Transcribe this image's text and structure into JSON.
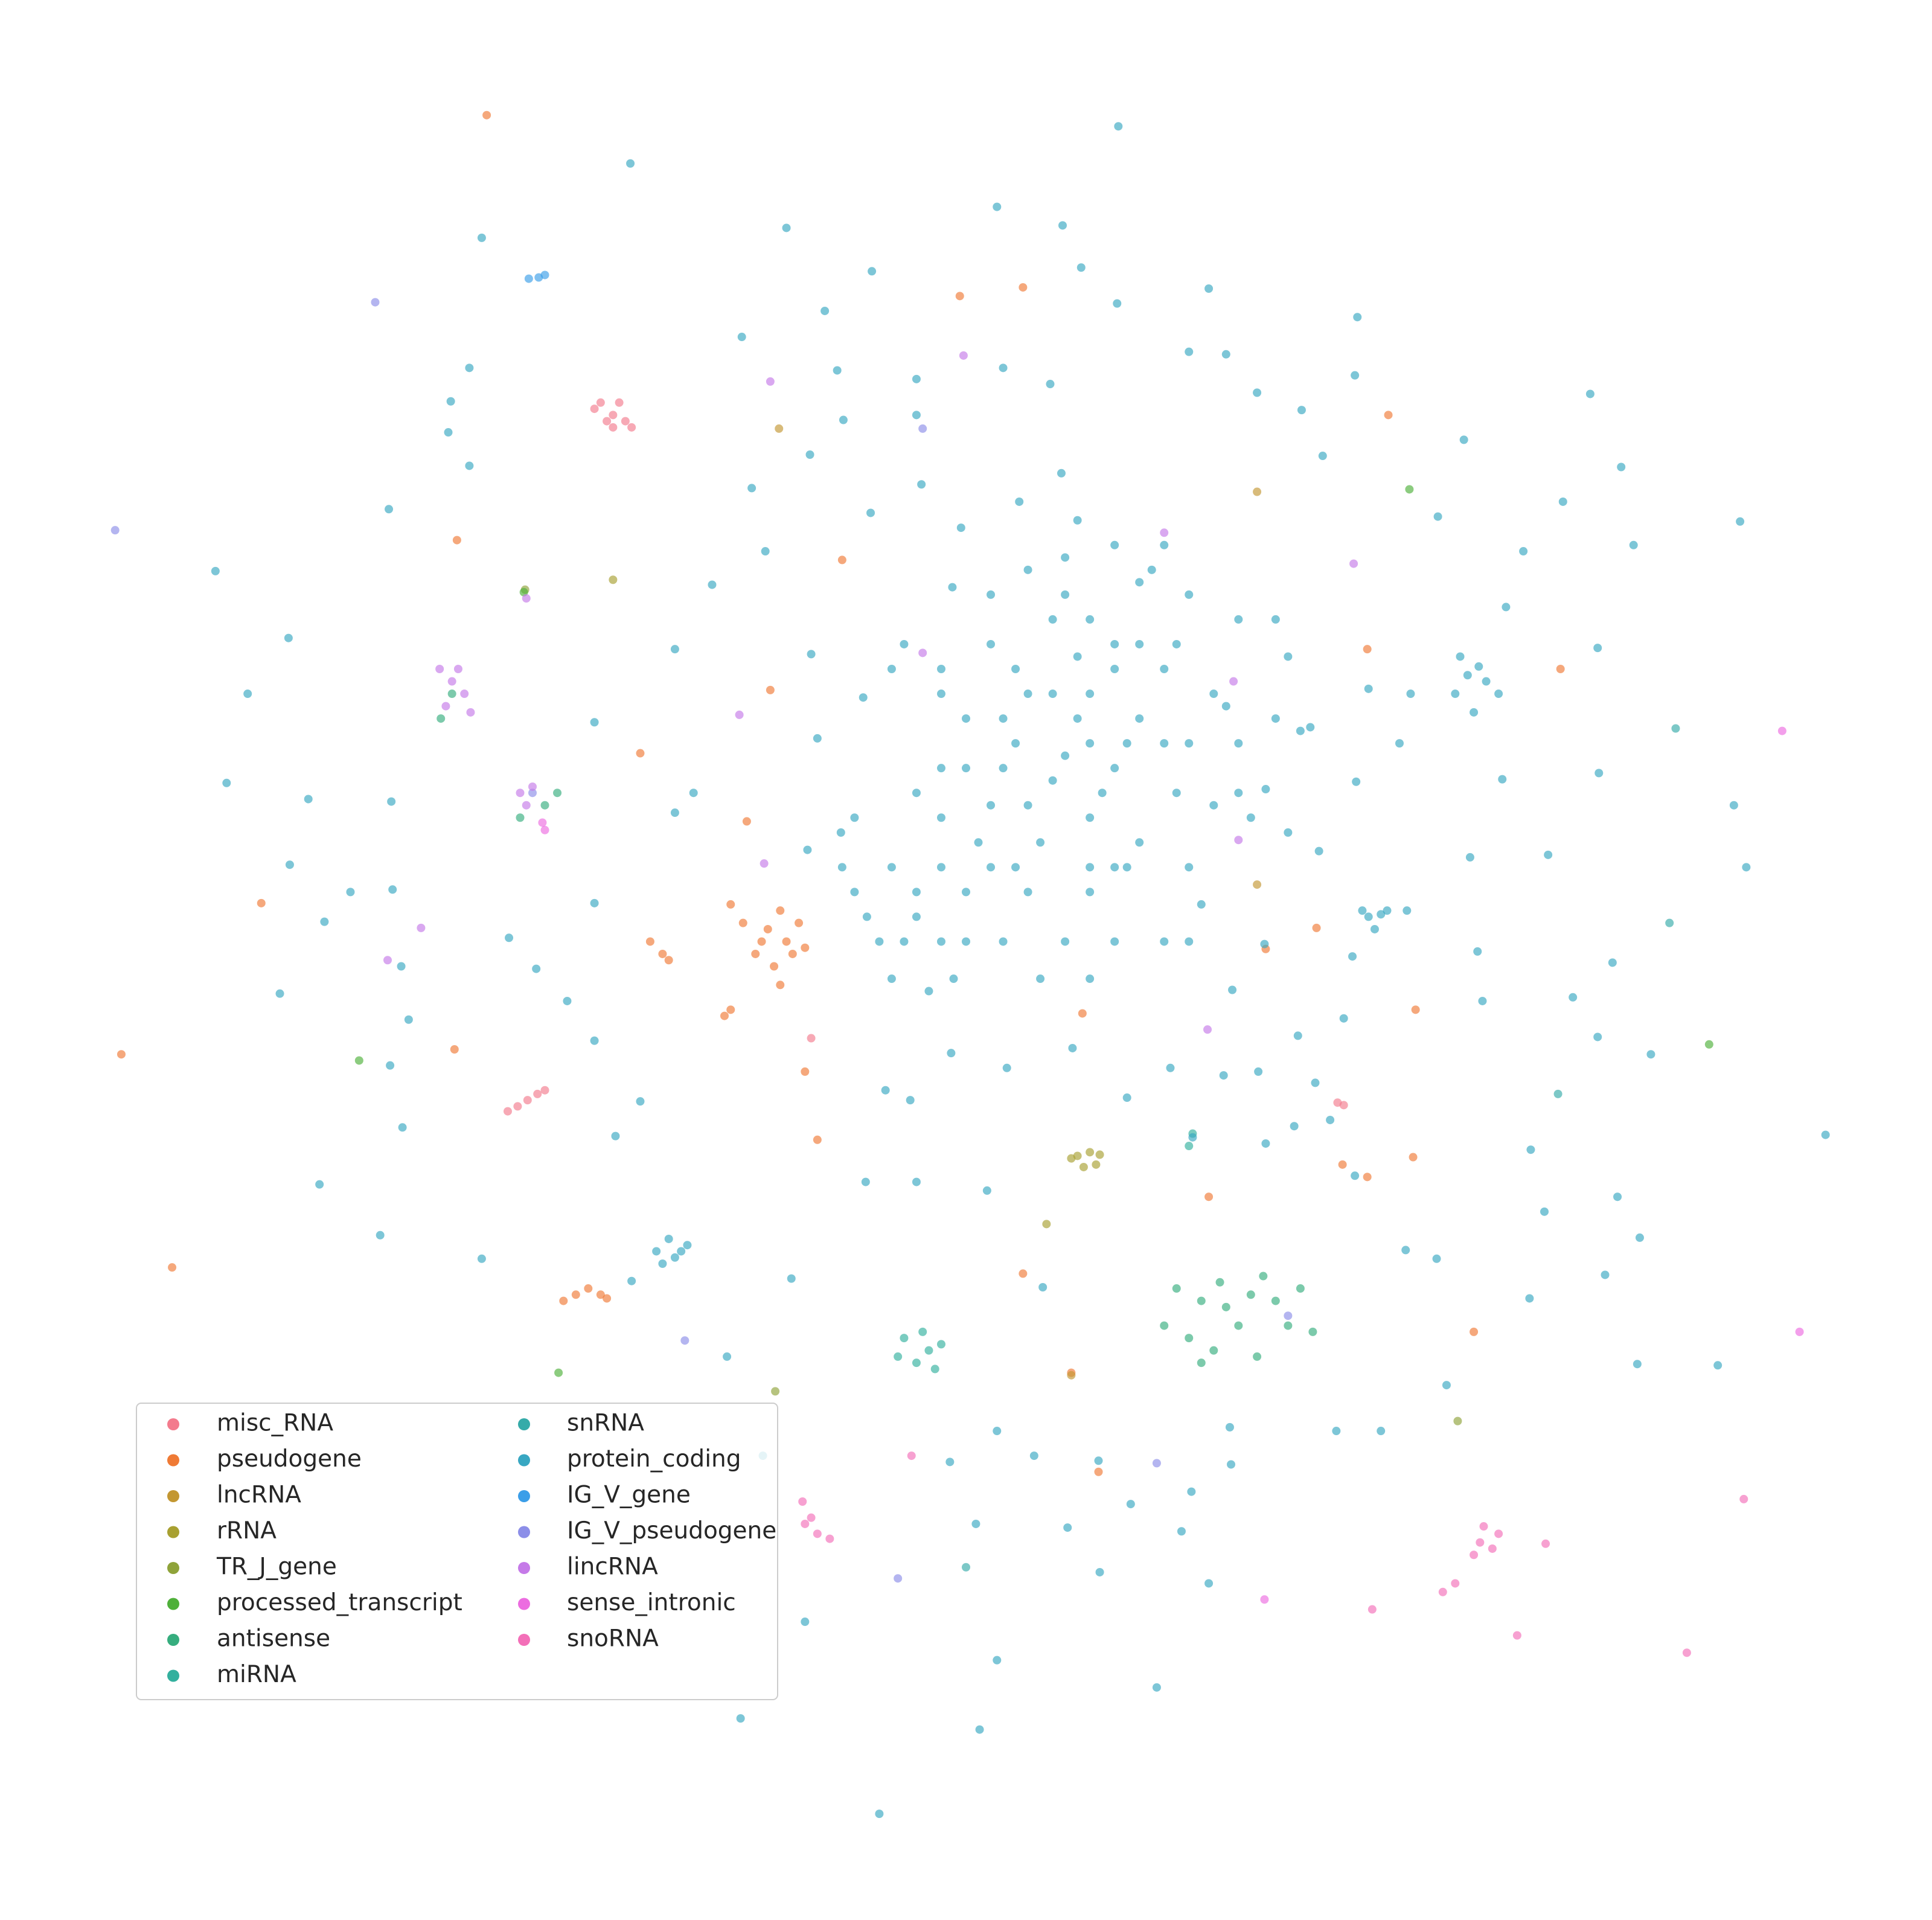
{
  "chart_data": {
    "type": "scatter",
    "xlim": [
      60,
      1500
    ],
    "ylim": [
      1500,
      60
    ],
    "legend": "lower left",
    "series": [
      {
        "name": "misc_RNA",
        "color": "#f37b8d",
        "x": [
          485,
          495,
          505,
          490,
          500,
          480,
          510,
          495,
          410,
          418,
          426,
          434,
          440,
          1080,
          1085,
          655
        ],
        "y": [
          325,
          335,
          340,
          340,
          325,
          330,
          345,
          345,
          897,
          893,
          888,
          883,
          880,
          890,
          892,
          838
        ]
      },
      {
        "name": "pseudogene",
        "color": "#ef7a35",
        "x": [
          393,
          775,
          826,
          1121,
          369,
          680,
          1104,
          1260,
          622,
          517,
          603,
          211,
          98,
          139,
          367,
          874,
          1143,
          1084,
          1104,
          1141,
          976,
          826,
          865,
          887,
          1190,
          1022,
          1063,
          620,
          635,
          645,
          610,
          625,
          640,
          600,
          650,
          630,
          615,
          630,
          590,
          535,
          540,
          525,
          590,
          585,
          475,
          465,
          485,
          455,
          490,
          660,
          650
        ],
        "y": [
          93,
          239,
          232,
          335,
          436,
          452,
          524,
          540,
          557,
          608,
          663,
          729,
          851,
          1023,
          847,
          818,
          815,
          940,
          950,
          934,
          966,
          1028,
          1108,
          1188,
          1075,
          766,
          749,
          750,
          760,
          745,
          770,
          780,
          770,
          745,
          765,
          735,
          760,
          795,
          730,
          770,
          775,
          760,
          815,
          820,
          1040,
          1045,
          1045,
          1050,
          1048,
          920,
          865
        ]
      },
      {
        "name": "lncRNA",
        "color": "#c39732",
        "x": [
          629,
          1015,
          1015,
          865
        ],
        "y": [
          346,
          714,
          397,
          1110
        ]
      },
      {
        "name": "rRNA",
        "color": "#a8a031",
        "x": [
          870,
          880,
          885,
          875,
          865,
          888,
          845,
          495
        ],
        "y": [
          933,
          930,
          940,
          942,
          935,
          932,
          988,
          468
        ]
      },
      {
        "name": "TR_J_gene",
        "color": "#8fa33a",
        "x": [
          626,
          1177,
          424
        ],
        "y": [
          1123,
          1147,
          476
        ]
      },
      {
        "name": "processed_transcript",
        "color": "#4fb03a",
        "x": [
          290,
          451,
          1380,
          1138,
          423
        ],
        "y": [
          856,
          1108,
          843,
          395,
          478
        ]
      },
      {
        "name": "antisense",
        "color": "#36ad7e",
        "x": [
          950,
          970,
          990,
          1010,
          1030,
          960,
          980,
          1000,
          1020,
          1040,
          940,
          970,
          1050,
          1060,
          1015,
          985,
          440,
          450,
          420,
          356,
          365
        ],
        "y": [
          1040,
          1050,
          1055,
          1045,
          1050,
          1080,
          1090,
          1070,
          1030,
          1070,
          1070,
          1100,
          1040,
          1075,
          1095,
          1035,
          650,
          640,
          660,
          580,
          560
        ]
      },
      {
        "name": "miRNA",
        "color": "#33b09e",
        "x": [
          730,
          745,
          760,
          740,
          755,
          725,
          750,
          963,
          960
        ],
        "y": [
          1080,
          1075,
          1085,
          1100,
          1105,
          1095,
          1090,
          915,
          925
        ]
      },
      {
        "name": "snRNA",
        "color": "#35aba9",
        "x": [
          780,
          1353,
          1348,
          1258
        ],
        "y": [
          1265,
          588,
          745,
          883
        ]
      },
      {
        "name": "protein_coding",
        "color": "#38a7c2",
        "x": [
          903,
          509,
          805,
          858,
          635,
          704,
          873,
          902,
          976,
          1096,
          666,
          599,
          676,
          740,
          810,
          848,
          960,
          990,
          1094,
          1015,
          1051,
          1284,
          1182,
          1068,
          1309,
          1405,
          1262,
          1319,
          1230,
          1161,
          1290,
          1216,
          1194,
          1139,
          1291,
          1400,
          1410,
          1250,
          1187,
          1213,
          1092,
          1193,
          1302,
          1270,
          1197,
          1290,
          1333,
          1474,
          1306,
          1247,
          1236,
          1324,
          1296,
          1235,
          1322,
          1387,
          1160,
          1135,
          1168,
          1115,
          1079,
          993,
          994,
          962,
          976,
          954,
          934,
          888,
          913,
          862,
          887,
          835,
          805,
          767,
          788,
          805,
          791,
          710,
          598,
          650,
          616,
          587,
          639,
          555,
          510,
          497,
          517,
          480,
          325,
          315,
          330,
          324,
          317,
          283,
          262,
          226,
          258,
          307,
          389,
          411,
          433,
          458,
          480,
          316,
          249,
          183,
          234,
          233,
          200,
          174,
          314,
          362,
          379,
          364,
          379,
          389,
          480,
          545,
          545,
          560,
          575,
          618,
          654,
          607,
          681,
          776,
          769,
          740,
          744,
          823,
          857,
          703,
          655,
          697,
          660,
          679,
          652,
          699,
          740,
          797,
          715,
          735,
          768,
          813,
          866,
          910,
          945,
          988,
          1016,
          1048,
          995,
          1021,
          1062,
          1085,
          1074,
          1022,
          1045,
          963,
          1094,
          842,
          1058,
          1040,
          1065,
          1022,
          1105,
          1095,
          1130,
          1179,
          1115,
          1136,
          760,
          800,
          850,
          900,
          940,
          780,
          830,
          880,
          920,
          960,
          760,
          810,
          860,
          900,
          950,
          880,
          920,
          840,
          800,
          760,
          720,
          740,
          700,
          730,
          760,
          720,
          780,
          760,
          860,
          900,
          930,
          960,
          1000,
          1030,
          980,
          1000,
          980,
          960,
          940,
          970,
          900,
          880,
          940,
          1000,
          1030,
          880,
          820,
          850,
          870,
          910,
          780,
          800,
          690,
          710,
          750,
          770,
          740,
          680,
          690,
          740,
          760,
          720,
          730,
          800,
          830,
          860,
          870,
          920,
          950,
          900,
          880,
          820,
          850,
          830,
          790,
          810,
          830,
          880,
          900,
          960,
          1010,
          990,
          1050,
          1040,
          890,
          870,
          810,
          920,
          940,
          860,
          880,
          840,
          910,
          820,
          780,
          1175,
          1200,
          1190,
          1210,
          1185,
          1105,
          1120,
          1110,
          1100,
          530,
          545,
          540,
          535,
          550
        ],
        "y": [
          102,
          132,
          167,
          182,
          184,
          219,
          216,
          245,
          233,
          256,
          251,
          272,
          299,
          306,
          297,
          310,
          284,
          286,
          303,
          317,
          331,
          318,
          355,
          368,
          377,
          421,
          405,
          440,
          445,
          417,
          523,
          490,
          538,
          560,
          624,
          650,
          700,
          690,
          692,
          629,
          772,
          768,
          777,
          805,
          808,
          837,
          851,
          916,
          966,
          978,
          928,
          999,
          1029,
          1048,
          1101,
          1102,
          1016,
          1009,
          1118,
          1155,
          1155,
          1152,
          1182,
          1204,
          1278,
          1236,
          1362,
          1269,
          1214,
          1233,
          1179,
          1175,
          1155,
          1180,
          1230,
          1340,
          1396,
          1464,
          1387,
          1309,
          1175,
          1095,
          1032,
          1005,
          1034,
          917,
          889,
          840,
          910,
          860,
          823,
          780,
          718,
          720,
          744,
          802,
          956,
          997,
          1016,
          757,
          782,
          808,
          729,
          647,
          645,
          632,
          698,
          515,
          560,
          461,
          411,
          349,
          376,
          324,
          297,
          192,
          583,
          524,
          656,
          640,
          472,
          445,
          367,
          394,
          339,
          426,
          474,
          335,
          391,
          405,
          382,
          414,
          528,
          563,
          596,
          672,
          686,
          954,
          954,
          961,
          880,
          888,
          850,
          862,
          846,
          886,
          862,
          868,
          865,
          836,
          799,
          762,
          874,
          822,
          904,
          923,
          909,
          918,
          949,
          1039,
          587,
          672,
          687,
          637,
          556,
          631,
          600,
          530,
          738,
          735,
          540,
          520,
          500,
          520,
          540,
          580,
          560,
          560,
          580,
          600,
          620,
          620,
          610,
          620,
          640,
          660,
          680,
          680,
          650,
          660,
          700,
          720,
          740,
          760,
          760,
          790,
          720,
          700,
          450,
          440,
          460,
          480,
          500,
          500,
          560,
          600,
          650,
          700,
          760,
          730,
          700,
          720,
          440,
          640,
          580,
          600,
          600,
          630,
          530,
          600,
          620,
          700,
          720,
          760,
          800,
          790,
          740,
          700,
          660,
          640,
          560,
          540,
          520,
          480,
          460,
          480,
          420,
          470,
          520,
          540,
          500,
          540,
          560,
          650,
          680,
          760,
          720,
          700,
          760,
          760,
          660,
          570,
          590,
          530,
          640,
          580,
          580,
          520,
          600,
          760,
          790,
          790,
          700,
          700,
          760,
          560,
          550,
          575,
          560,
          545,
          740,
          735,
          750,
          735,
          1010,
          1015,
          1000,
          1020,
          1010
        ]
      },
      {
        "name": "IG_V_gene",
        "color": "#3b9ee8",
        "x": [
          427,
          440,
          435
        ],
        "y": [
          225,
          222,
          224
        ]
      },
      {
        "name": "IG_V_pseudogene",
        "color": "#8c8ee8",
        "x": [
          93,
          553,
          725,
          934,
          303,
          745,
          1040,
          430
        ],
        "y": [
          428,
          1082,
          1274,
          1181,
          244,
          346,
          1062,
          640
        ]
      },
      {
        "name": "lincRNA",
        "color": "#c57ae8",
        "x": [
          365,
          375,
          360,
          380,
          355,
          370,
          420,
          430,
          425,
          778,
          622,
          1000,
          996,
          1093,
          340,
          313,
          425,
          975,
          597,
          617,
          745,
          940
        ],
        "y": [
          550,
          560,
          570,
          575,
          540,
          540,
          640,
          635,
          650,
          287,
          308,
          678,
          550,
          455,
          749,
          775,
          483,
          831,
          577,
          697,
          527,
          430
        ]
      },
      {
        "name": "sense_intronic",
        "color": "#ec6ce0",
        "x": [
          440,
          438,
          1453,
          1439,
          1021
        ],
        "y": [
          670,
          664,
          1075,
          590,
          1291
        ]
      },
      {
        "name": "snoRNA",
        "color": "#f36fb8",
        "x": [
          650,
          660,
          670,
          655,
          648,
          1195,
          1205,
          1190,
          1210,
          1198,
          1165,
          1175,
          736,
          1108,
          1225,
          1362,
          1408,
          1248
        ],
        "y": [
          1230,
          1238,
          1242,
          1225,
          1212,
          1245,
          1250,
          1255,
          1238,
          1232,
          1285,
          1278,
          1175,
          1299,
          1320,
          1334,
          1210,
          1246
        ]
      }
    ]
  }
}
